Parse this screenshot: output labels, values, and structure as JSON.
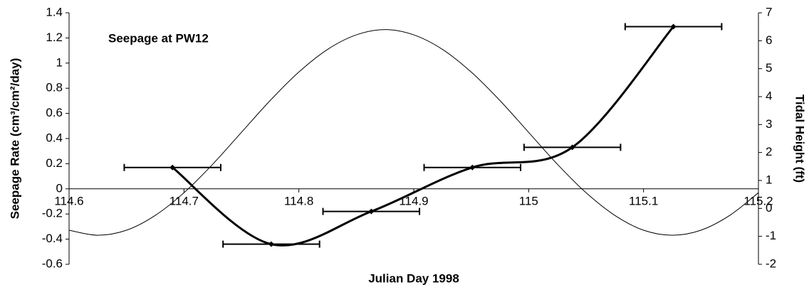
{
  "chart_data": {
    "type": "line",
    "title": "Seepage at PW12",
    "xlabel": "Julian Day 1998",
    "ylabel": "Seepage Rate (cm³/cm²/day)",
    "y2label": "Tidal Height (ft)",
    "xlim": [
      114.6,
      115.2
    ],
    "xticks": [
      114.6,
      114.7,
      114.8,
      114.9,
      115,
      115.1,
      115.2
    ],
    "ylim": [
      -0.6,
      1.4
    ],
    "yticks": [
      -0.6,
      -0.4,
      -0.2,
      0,
      0.2,
      0.4,
      0.6,
      0.8,
      1,
      1.2,
      1.4
    ],
    "y2lim": [
      -2,
      7
    ],
    "y2ticks": [
      -2,
      -1,
      0,
      1,
      2,
      3,
      4,
      5,
      6,
      7
    ],
    "series": [
      {
        "color": "#000000",
        "x": [
          114.69,
          114.776,
          114.863,
          114.951,
          115.038,
          115.126
        ],
        "values": [
          0.17,
          -0.44,
          -0.18,
          0.17,
          0.33,
          1.29
        ],
        "xerr": [
          0.042,
          0.042,
          0.042,
          0.042,
          0.042,
          0.042
        ]
      },
      {
        "color": "#000000",
        "axis": "y2",
        "x": [
          114.6,
          114.625,
          114.65,
          114.675,
          114.7,
          114.725,
          114.75,
          114.775,
          114.8,
          114.825,
          114.85,
          114.875,
          114.9,
          114.925,
          114.95,
          114.975,
          115,
          115.025,
          115.05,
          115.075,
          115.1,
          115.125,
          115.15,
          115.175,
          115.2
        ],
        "values": [
          -0.78,
          -0.96,
          -0.78,
          -0.25,
          0.56,
          1.58,
          2.72,
          3.86,
          4.88,
          5.69,
          6.21,
          6.4,
          6.21,
          5.69,
          4.88,
          3.86,
          2.72,
          1.58,
          0.56,
          -0.25,
          -0.78,
          -0.96,
          -0.78,
          -0.25,
          0.56
        ]
      }
    ]
  }
}
